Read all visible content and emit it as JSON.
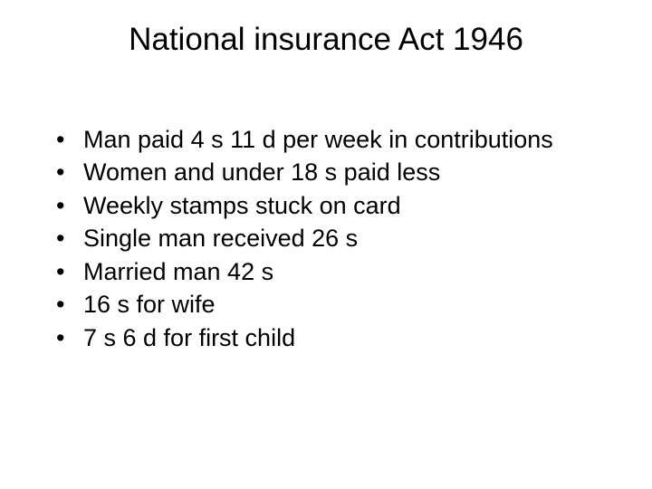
{
  "slide": {
    "title": "National insurance Act 1946",
    "bullets": [
      "Man paid 4 s 11 d per week in contributions",
      "Women and under 18 s paid less",
      "Weekly stamps stuck on card",
      "Single man received 26 s",
      "Married man 42 s",
      "16 s for wife",
      "7 s 6 d for first child"
    ]
  },
  "style": {
    "background_color": "#ffffff",
    "text_color": "#000000",
    "title_fontsize": 35,
    "title_fontweight": 400,
    "body_fontsize": 27,
    "font_family": "Arial, Helvetica, sans-serif",
    "bullet_char": "•",
    "slide_width": 720,
    "slide_height": 540
  }
}
